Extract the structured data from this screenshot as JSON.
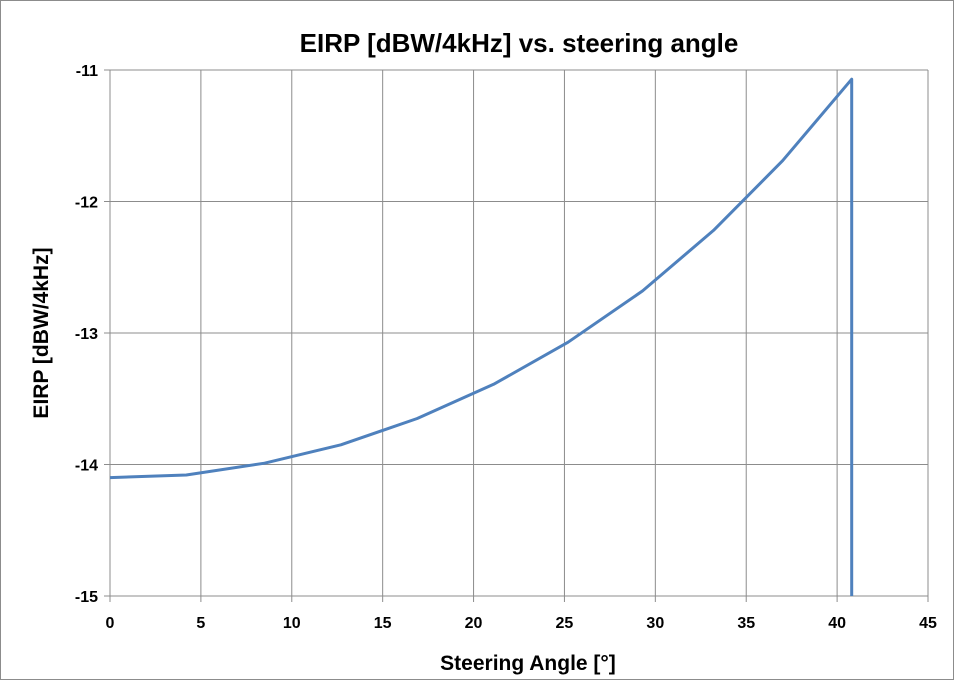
{
  "chart_data": {
    "type": "line",
    "title": "EIRP [dBW/4kHz] vs. steering angle",
    "xlabel": "Steering Angle [°]",
    "ylabel": "EIRP [dBW/4kHz]",
    "xlim": [
      0,
      45
    ],
    "ylim": [
      -15,
      -11
    ],
    "xticks": [
      0,
      5,
      10,
      15,
      20,
      25,
      30,
      35,
      40,
      45
    ],
    "yticks": [
      -11,
      -12,
      -13,
      -14,
      -15
    ],
    "xtick_labels": [
      "0",
      "5",
      "10",
      "15",
      "20",
      "25",
      "30",
      "35",
      "40",
      "45"
    ],
    "ytick_labels": [
      "-11",
      "-12",
      "-13",
      "-14",
      "-15"
    ],
    "grid": true,
    "legend": "none",
    "series": [
      {
        "color": "#4f81bd",
        "x": [
          0,
          4.2,
          8.5,
          12.7,
          16.9,
          21.1,
          25.2,
          29.3,
          33.2,
          37.0,
          40.8,
          40.8
        ],
        "y": [
          -14.1,
          -14.08,
          -13.99,
          -13.85,
          -13.65,
          -13.39,
          -13.07,
          -12.68,
          -12.22,
          -11.69,
          -11.07,
          -15.0
        ]
      }
    ]
  }
}
